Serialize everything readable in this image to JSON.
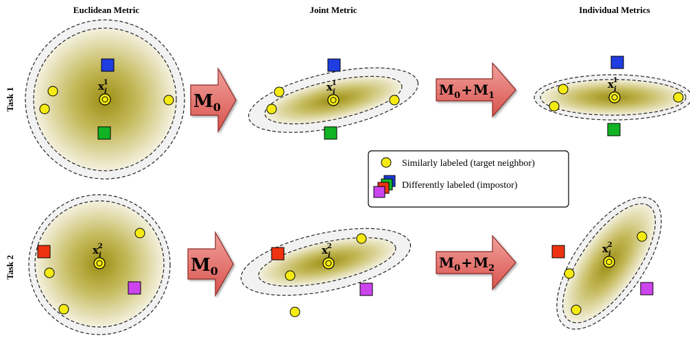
{
  "columns": {
    "euclidean": "Euclidean Metric",
    "joint": "Joint Metric",
    "individual": "Individual Metrics"
  },
  "rows": {
    "task1": "Task 1",
    "task2": "Task 2"
  },
  "point_label": {
    "base": "x",
    "subscript": "i",
    "task1_superscript": "1",
    "task2_superscript": "2"
  },
  "arrows": {
    "joint": {
      "main": "M",
      "sub": "0"
    },
    "individual_task1": {
      "left": "M",
      "left_sub": "0",
      "plus": "+",
      "right": "M",
      "right_sub": "1"
    },
    "individual_task2": {
      "left": "M",
      "left_sub": "0",
      "plus": "+",
      "right": "M",
      "right_sub": "2"
    }
  },
  "legend": {
    "similar": "Similarly labeled (target neighbor)",
    "different": "Differently labeled (impostor)"
  },
  "colors": {
    "target_neighbor": "#f5eb12",
    "impostor_blue": "#1f3de0",
    "impostor_green": "#12b325",
    "impostor_red": "#ee3311",
    "impostor_purple": "#cc44ee",
    "arrow_fill": "#e06560",
    "region_center": "#9c8e14",
    "region_edge": "#f4f1df"
  }
}
